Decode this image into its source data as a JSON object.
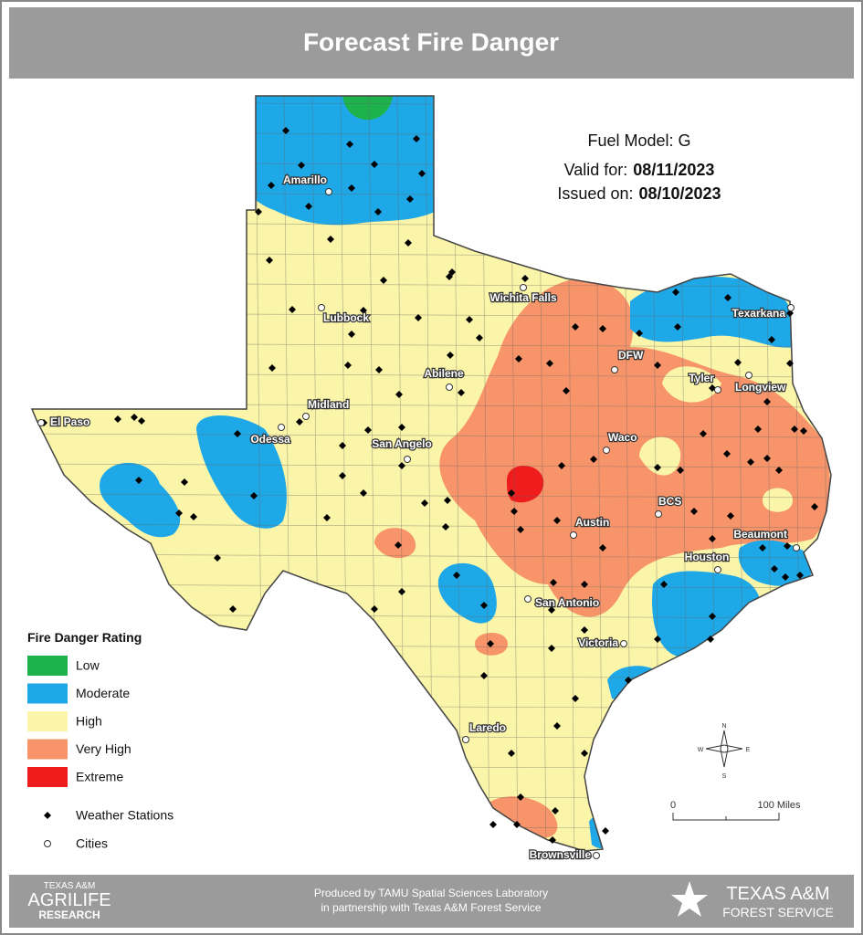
{
  "title": "Forecast Fire Danger",
  "info": {
    "fuel_model": "Fuel Model: G",
    "valid_label": "Valid for:",
    "valid_date": "08/11/2023",
    "issued_label": "Issued on:",
    "issued_date": "08/10/2023"
  },
  "legend": {
    "title": "Fire Danger Rating",
    "ratings": [
      {
        "label": "Low",
        "color": "#1db24b"
      },
      {
        "label": "Moderate",
        "color": "#1fa8e8"
      },
      {
        "label": "High",
        "color": "#faf5a8"
      },
      {
        "label": "Very High",
        "color": "#f7946a"
      },
      {
        "label": "Extreme",
        "color": "#ee1c1c"
      }
    ],
    "symbols": [
      "Weather Stations",
      "Cities"
    ]
  },
  "cities": [
    "Amarillo",
    "Lubbock",
    "Wichita Falls",
    "Texarkana",
    "DFW",
    "Tyler",
    "Longview",
    "Abilene",
    "Midland",
    "El Paso",
    "Odessa",
    "San Angelo",
    "Waco",
    "BCS",
    "Austin",
    "Beaumont",
    "Houston",
    "San Antonio",
    "Victoria",
    "Laredo",
    "Brownsville"
  ],
  "compass": [
    "N",
    "E",
    "S",
    "W"
  ],
  "scale": [
    "0",
    "100 Miles"
  ],
  "footer": [
    "Produced by TAMU Spatial Sciences Laboratory",
    "in partnership with Texas A&M Forest Service"
  ],
  "logos": {
    "left": [
      "TEXAS A&M",
      "AGRILIFE",
      "RESEARCH"
    ],
    "right": [
      "TEXAS A&M",
      "FOREST SERVICE"
    ]
  }
}
